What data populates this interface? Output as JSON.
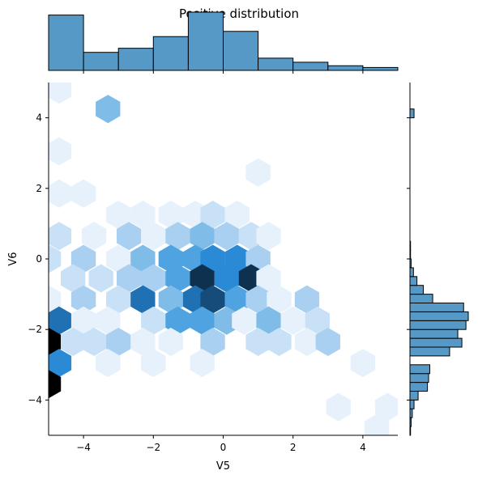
{
  "chart_data": {
    "type": "hexbin",
    "title": "Positive distribution",
    "xlabel": "V5",
    "ylabel": "V6",
    "xlim": [
      -5,
      5
    ],
    "ylim": [
      -5,
      5
    ],
    "xticks": [
      -4,
      -2,
      0,
      2,
      4
    ],
    "yticks": [
      -4,
      -2,
      0,
      2,
      4
    ],
    "xtick_labels": [
      "−4",
      "−2",
      "0",
      "2",
      "4"
    ],
    "ytick_labels": [
      "−4",
      "−2",
      "0",
      "2",
      "4"
    ],
    "grid": false,
    "colors": {
      "hist_fill": "#5699c6",
      "hist_edge": "#000000",
      "hex_scale": [
        "#e6f1fb",
        "#c8e1f6",
        "#a9d0f0",
        "#7fbce8",
        "#4ea3e0",
        "#2a8ad6",
        "#2070b4",
        "#164c7a",
        "#0e3150",
        "#000000"
      ]
    },
    "hex_cells": [
      {
        "x": -4.7,
        "y": 4.8,
        "level": 1
      },
      {
        "x": -3.3,
        "y": 4.25,
        "level": 4
      },
      {
        "x": -4.7,
        "y": 3.05,
        "level": 1
      },
      {
        "x": 1.0,
        "y": 2.45,
        "level": 1
      },
      {
        "x": -4.7,
        "y": 1.85,
        "level": 1
      },
      {
        "x": -4.0,
        "y": 1.85,
        "level": 1
      },
      {
        "x": -3.0,
        "y": 1.25,
        "level": 1
      },
      {
        "x": -2.3,
        "y": 1.25,
        "level": 1
      },
      {
        "x": -1.5,
        "y": 1.25,
        "level": 1
      },
      {
        "x": -0.8,
        "y": 1.25,
        "level": 1
      },
      {
        "x": -0.3,
        "y": 1.25,
        "level": 2
      },
      {
        "x": 0.4,
        "y": 1.25,
        "level": 1
      },
      {
        "x": -4.7,
        "y": 0.65,
        "level": 2
      },
      {
        "x": -3.7,
        "y": 0.65,
        "level": 1
      },
      {
        "x": -2.7,
        "y": 0.65,
        "level": 3
      },
      {
        "x": -2.0,
        "y": 0.65,
        "level": 1
      },
      {
        "x": -1.3,
        "y": 0.65,
        "level": 3
      },
      {
        "x": -0.6,
        "y": 0.65,
        "level": 4
      },
      {
        "x": 0.1,
        "y": 0.65,
        "level": 3
      },
      {
        "x": 0.8,
        "y": 0.65,
        "level": 2
      },
      {
        "x": 1.3,
        "y": 0.65,
        "level": 1
      },
      {
        "x": -5.0,
        "y": 0.0,
        "level": 2
      },
      {
        "x": -4.0,
        "y": 0.0,
        "level": 3
      },
      {
        "x": -3.0,
        "y": 0.0,
        "level": 1
      },
      {
        "x": -2.3,
        "y": 0.0,
        "level": 4
      },
      {
        "x": -1.5,
        "y": 0.0,
        "level": 5
      },
      {
        "x": -0.8,
        "y": 0.0,
        "level": 5
      },
      {
        "x": -0.3,
        "y": 0.0,
        "level": 6
      },
      {
        "x": 0.4,
        "y": 0.0,
        "level": 6
      },
      {
        "x": 1.0,
        "y": 0.0,
        "level": 3
      },
      {
        "x": -4.3,
        "y": -0.55,
        "level": 2
      },
      {
        "x": -3.5,
        "y": -0.55,
        "level": 2
      },
      {
        "x": -2.7,
        "y": -0.55,
        "level": 3
      },
      {
        "x": -2.0,
        "y": -0.55,
        "level": 3
      },
      {
        "x": -1.3,
        "y": -0.55,
        "level": 5
      },
      {
        "x": -0.6,
        "y": -0.55,
        "level": 9
      },
      {
        "x": 0.1,
        "y": -0.55,
        "level": 6
      },
      {
        "x": 0.8,
        "y": -0.55,
        "level": 9
      },
      {
        "x": 1.3,
        "y": -0.55,
        "level": 1
      },
      {
        "x": -5.0,
        "y": -1.15,
        "level": 1
      },
      {
        "x": -4.0,
        "y": -1.15,
        "level": 3
      },
      {
        "x": -3.0,
        "y": -1.15,
        "level": 2
      },
      {
        "x": -2.3,
        "y": -1.15,
        "level": 7
      },
      {
        "x": -1.5,
        "y": -1.15,
        "level": 4
      },
      {
        "x": -0.8,
        "y": -1.15,
        "level": 7
      },
      {
        "x": -0.3,
        "y": -1.15,
        "level": 8
      },
      {
        "x": 0.4,
        "y": -1.15,
        "level": 5
      },
      {
        "x": 1.0,
        "y": -1.15,
        "level": 3
      },
      {
        "x": 1.6,
        "y": -1.15,
        "level": 1
      },
      {
        "x": 2.4,
        "y": -1.15,
        "level": 3
      },
      {
        "x": -4.7,
        "y": -1.75,
        "level": 7
      },
      {
        "x": -4.0,
        "y": -1.75,
        "level": 1
      },
      {
        "x": -3.3,
        "y": -1.75,
        "level": 1
      },
      {
        "x": -2.0,
        "y": -1.75,
        "level": 2
      },
      {
        "x": -1.3,
        "y": -1.75,
        "level": 5
      },
      {
        "x": -0.6,
        "y": -1.75,
        "level": 5
      },
      {
        "x": 0.1,
        "y": -1.75,
        "level": 4
      },
      {
        "x": 0.6,
        "y": -1.75,
        "level": 1
      },
      {
        "x": 1.3,
        "y": -1.75,
        "level": 4
      },
      {
        "x": 2.0,
        "y": -1.75,
        "level": 1
      },
      {
        "x": 2.7,
        "y": -1.75,
        "level": 2
      },
      {
        "x": -5.0,
        "y": -2.35,
        "level": 10
      },
      {
        "x": -4.3,
        "y": -2.35,
        "level": 2
      },
      {
        "x": -3.7,
        "y": -2.35,
        "level": 2
      },
      {
        "x": -3.0,
        "y": -2.35,
        "level": 3
      },
      {
        "x": -2.3,
        "y": -2.35,
        "level": 1
      },
      {
        "x": -1.5,
        "y": -2.35,
        "level": 1
      },
      {
        "x": -0.3,
        "y": -2.35,
        "level": 3
      },
      {
        "x": 1.0,
        "y": -2.35,
        "level": 2
      },
      {
        "x": 1.6,
        "y": -2.35,
        "level": 2
      },
      {
        "x": 2.4,
        "y": -2.35,
        "level": 1
      },
      {
        "x": 3.0,
        "y": -2.35,
        "level": 3
      },
      {
        "x": -4.7,
        "y": -2.95,
        "level": 6
      },
      {
        "x": -3.3,
        "y": -2.95,
        "level": 1
      },
      {
        "x": -2.0,
        "y": -2.95,
        "level": 1
      },
      {
        "x": -0.6,
        "y": -2.95,
        "level": 1
      },
      {
        "x": 4.0,
        "y": -2.95,
        "level": 1
      },
      {
        "x": -5.0,
        "y": -3.55,
        "level": 10
      },
      {
        "x": 3.3,
        "y": -4.2,
        "level": 1
      },
      {
        "x": 4.7,
        "y": -4.2,
        "level": 1
      },
      {
        "x": 4.4,
        "y": -4.8,
        "level": 1
      }
    ],
    "marginal_x": {
      "bin_edges": [
        -5,
        -4,
        -3,
        -2,
        -1,
        0,
        1,
        2,
        3,
        4,
        5
      ],
      "heights": [
        0.95,
        0.31,
        0.38,
        0.58,
        1.0,
        0.67,
        0.21,
        0.14,
        0.08,
        0.05
      ]
    },
    "marginal_y": {
      "bin_edges": [
        -5,
        -4.75,
        -4.5,
        -4.25,
        -4,
        -3.75,
        -3.5,
        -3.25,
        -3,
        -2.75,
        -2.5,
        -2.25,
        -2,
        -1.75,
        -1.5,
        -1.25,
        -1,
        -0.75,
        -0.5,
        -0.25,
        0,
        0.25,
        0.5,
        0.75,
        1,
        1.25,
        1.5,
        1.75,
        2,
        2.25,
        2.5,
        2.75,
        3,
        3.25,
        3.5,
        3.75,
        4,
        4.25,
        4.5,
        4.75,
        5
      ],
      "widths": [
        0.01,
        0.02,
        0.04,
        0.07,
        0.14,
        0.3,
        0.32,
        0.34,
        0.0,
        0.68,
        0.89,
        0.82,
        0.96,
        1.0,
        0.92,
        0.39,
        0.23,
        0.12,
        0.06,
        0.02,
        0.01,
        0.01,
        0.0,
        0.0,
        0.0,
        0.0,
        0.0,
        0.0,
        0.0,
        0.0,
        0.0,
        0.0,
        0.0,
        0.0,
        0.0,
        0.0,
        0.07,
        0.0,
        0.0,
        0.0
      ]
    }
  }
}
